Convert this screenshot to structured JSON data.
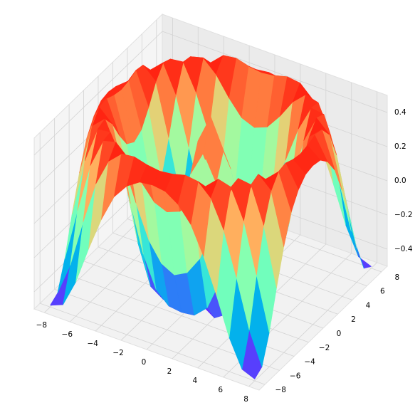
{
  "chart_data": {
    "type": "surface",
    "colormap": "rainbow",
    "grid": true,
    "x": [
      -8,
      -7,
      -6,
      -5,
      -4,
      -3,
      -2,
      -1,
      0,
      1,
      2,
      3,
      4,
      5,
      6,
      7,
      8
    ],
    "y": [
      -8,
      -7,
      -6,
      -5,
      -4,
      -3,
      -2,
      -1,
      0,
      1,
      2,
      3,
      4,
      5,
      6,
      7,
      8
    ],
    "z": [
      [
        -0.49,
        -0.46,
        -0.3,
        -0.08,
        0.12,
        0.28,
        0.37,
        0.42,
        0.43,
        0.42,
        0.37,
        0.28,
        0.12,
        -0.08,
        -0.3,
        -0.46,
        -0.49
      ],
      [
        -0.46,
        -0.27,
        0.01,
        0.26,
        0.42,
        0.49,
        0.5,
        0.48,
        0.47,
        0.48,
        0.5,
        0.49,
        0.42,
        0.26,
        0.01,
        -0.27,
        -0.46
      ],
      [
        -0.3,
        0.01,
        0.3,
        0.47,
        0.49,
        0.42,
        0.31,
        0.22,
        0.19,
        0.22,
        0.31,
        0.42,
        0.49,
        0.47,
        0.3,
        0.01,
        -0.3
      ],
      [
        -0.08,
        0.26,
        0.47,
        0.48,
        0.33,
        0.12,
        -0.07,
        -0.18,
        -0.22,
        -0.18,
        -0.07,
        0.12,
        0.33,
        0.48,
        0.47,
        0.26,
        -0.08
      ],
      [
        0.12,
        0.42,
        0.49,
        0.33,
        0.05,
        -0.22,
        -0.4,
        -0.47,
        -0.48,
        -0.47,
        -0.4,
        -0.22,
        0.05,
        0.33,
        0.49,
        0.42,
        0.12
      ],
      [
        0.28,
        0.49,
        0.42,
        0.12,
        -0.22,
        -0.45,
        -0.5,
        -0.45,
        -0.42,
        -0.45,
        -0.5,
        -0.45,
        -0.22,
        0.12,
        0.42,
        0.49,
        0.28
      ],
      [
        0.37,
        0.5,
        0.31,
        -0.07,
        -0.4,
        -0.5,
        -0.37,
        -0.16,
        -0.06,
        -0.16,
        -0.37,
        -0.5,
        -0.4,
        -0.07,
        0.31,
        0.5,
        0.37
      ],
      [
        0.42,
        0.48,
        0.22,
        -0.18,
        -0.47,
        -0.45,
        -0.16,
        0.18,
        0.33,
        0.18,
        -0.16,
        -0.45,
        -0.47,
        -0.18,
        0.22,
        0.48,
        0.42
      ],
      [
        0.43,
        0.47,
        0.19,
        -0.22,
        -0.48,
        -0.42,
        -0.06,
        0.33,
        0.5,
        0.33,
        -0.06,
        -0.42,
        -0.48,
        -0.22,
        0.19,
        0.47,
        0.43
      ],
      [
        0.42,
        0.48,
        0.22,
        -0.18,
        -0.47,
        -0.45,
        -0.16,
        0.18,
        0.33,
        0.18,
        -0.16,
        -0.45,
        -0.47,
        -0.18,
        0.22,
        0.48,
        0.42
      ],
      [
        0.37,
        0.5,
        0.31,
        -0.07,
        -0.4,
        -0.5,
        -0.37,
        -0.16,
        -0.06,
        -0.16,
        -0.37,
        -0.5,
        -0.4,
        -0.07,
        0.31,
        0.5,
        0.37
      ],
      [
        0.28,
        0.49,
        0.42,
        0.12,
        -0.22,
        -0.45,
        -0.5,
        -0.45,
        -0.42,
        -0.45,
        -0.5,
        -0.45,
        -0.22,
        0.12,
        0.42,
        0.49,
        0.28
      ],
      [
        0.12,
        0.42,
        0.49,
        0.33,
        0.05,
        -0.22,
        -0.4,
        -0.47,
        -0.48,
        -0.47,
        -0.4,
        -0.22,
        0.05,
        0.33,
        0.49,
        0.42,
        0.12
      ],
      [
        -0.08,
        0.26,
        0.47,
        0.48,
        0.33,
        0.12,
        -0.07,
        -0.18,
        -0.22,
        -0.18,
        -0.07,
        0.12,
        0.33,
        0.48,
        0.47,
        0.26,
        -0.08
      ],
      [
        -0.3,
        0.01,
        0.3,
        0.47,
        0.49,
        0.42,
        0.31,
        0.22,
        0.19,
        0.22,
        0.31,
        0.42,
        0.49,
        0.47,
        0.3,
        0.01,
        -0.3
      ],
      [
        -0.46,
        -0.27,
        0.01,
        0.26,
        0.42,
        0.49,
        0.5,
        0.48,
        0.47,
        0.48,
        0.5,
        0.49,
        0.42,
        0.26,
        0.01,
        -0.27,
        -0.46
      ],
      [
        -0.49,
        -0.46,
        -0.3,
        -0.08,
        0.12,
        0.28,
        0.37,
        0.42,
        0.43,
        0.42,
        0.37,
        0.28,
        0.12,
        -0.08,
        -0.3,
        -0.46,
        -0.49
      ]
    ],
    "xlim": [
      -8.8,
      8.8
    ],
    "ylim": [
      -8.8,
      8.8
    ],
    "zlim": [
      -0.5,
      0.5
    ],
    "xticks": [
      {
        "value": -8,
        "label": "−8"
      },
      {
        "value": -6,
        "label": "−6"
      },
      {
        "value": -4,
        "label": "−4"
      },
      {
        "value": -2,
        "label": "−2"
      },
      0,
      2,
      4,
      6,
      8
    ],
    "yticks": [
      {
        "value": -8,
        "label": "−8"
      },
      {
        "value": -6,
        "label": "−6"
      },
      {
        "value": -4,
        "label": "−4"
      },
      {
        "value": -2,
        "label": "−2"
      },
      0,
      2,
      4,
      6,
      8
    ],
    "zticks": [
      {
        "value": -0.4,
        "label": "−0.4"
      },
      {
        "value": -0.2,
        "label": "−0.2"
      },
      {
        "value": 0,
        "label": "0.0"
      },
      0.2,
      0.4
    ]
  }
}
